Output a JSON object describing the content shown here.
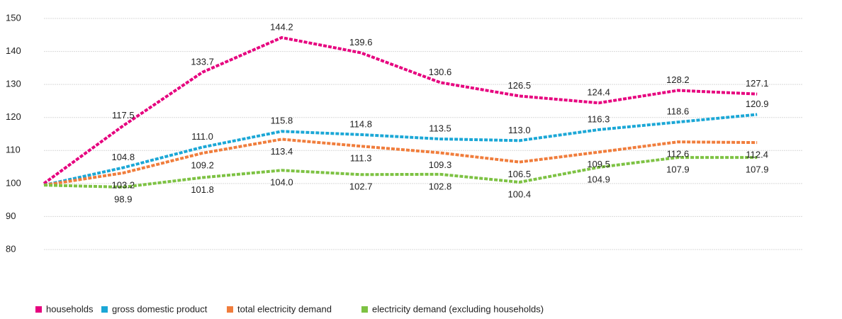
{
  "chart_data": {
    "type": "line",
    "categories": [
      null,
      null,
      null,
      null,
      null,
      null,
      null,
      null,
      null,
      null
    ],
    "series": [
      {
        "name": "households",
        "color": "#e6007e",
        "values": [
          100,
          117.5,
          133.7,
          144.2,
          139.6,
          130.6,
          126.5,
          124.4,
          128.2,
          127.1
        ],
        "value_labels": [
          null,
          "117.5",
          "133.7",
          "144.2",
          "139.6",
          "130.6",
          "126.5",
          "124.4",
          "128.2",
          "127.1"
        ]
      },
      {
        "name": "gross domestic product",
        "color": "#1ba7d6",
        "values": [
          99.5,
          104.8,
          111.0,
          115.8,
          114.8,
          113.5,
          113.0,
          116.3,
          118.6,
          120.9
        ],
        "value_labels": [
          null,
          "104.8",
          "111.0",
          "115.8",
          "114.8",
          "113.5",
          "113.0",
          "116.3",
          "118.6",
          "120.9"
        ]
      },
      {
        "name": "total electricity demand",
        "color": "#f07d3c",
        "values": [
          99.5,
          103.2,
          109.2,
          113.4,
          111.3,
          109.3,
          106.5,
          109.5,
          112.6,
          112.4
        ],
        "value_labels": [
          null,
          "103.2",
          "109.2",
          "113.4",
          "111.3",
          "109.3",
          "106.5",
          "109.5",
          "112.6",
          "112.4"
        ]
      },
      {
        "name": "electricity demand (excluding households)",
        "color": "#7dc243",
        "values": [
          99.5,
          98.9,
          101.8,
          104.0,
          102.7,
          102.8,
          100.4,
          104.9,
          107.9,
          107.9
        ],
        "value_labels": [
          null,
          "98.9",
          "101.8",
          "104.0",
          "102.7",
          "102.8",
          "100.4",
          "104.9",
          "107.9",
          "107.9"
        ]
      }
    ],
    "ylim": [
      80,
      150
    ],
    "yticks": [
      80,
      90,
      100,
      110,
      120,
      130,
      140,
      150
    ],
    "grid": true
  }
}
